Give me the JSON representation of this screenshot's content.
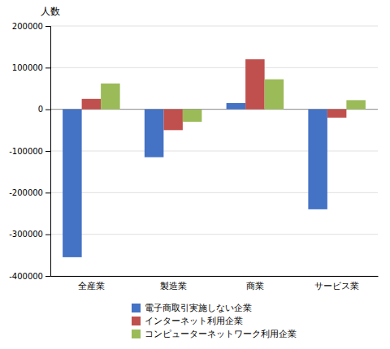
{
  "chart_data": {
    "type": "bar",
    "y_label": "人数",
    "categories": [
      "全産業",
      "製造業",
      "商業",
      "サービス業"
    ],
    "series": [
      {
        "name": "電子商取引実施しない企業",
        "color": "#4472C4",
        "values": [
          -355000,
          -115000,
          15000,
          -240000
        ]
      },
      {
        "name": "インターネット利用企業",
        "color": "#C0504D",
        "values": [
          25000,
          -50000,
          120000,
          -20000
        ]
      },
      {
        "name": "コンピューターネットワーク利用企業",
        "color": "#9BBB59",
        "values": [
          62000,
          -30000,
          72000,
          22000
        ]
      }
    ],
    "ylim": [
      -400000,
      200000
    ],
    "yticks": [
      -400000,
      -300000,
      -200000,
      -100000,
      0,
      100000,
      200000
    ],
    "grid": true,
    "legend": "bottom"
  }
}
